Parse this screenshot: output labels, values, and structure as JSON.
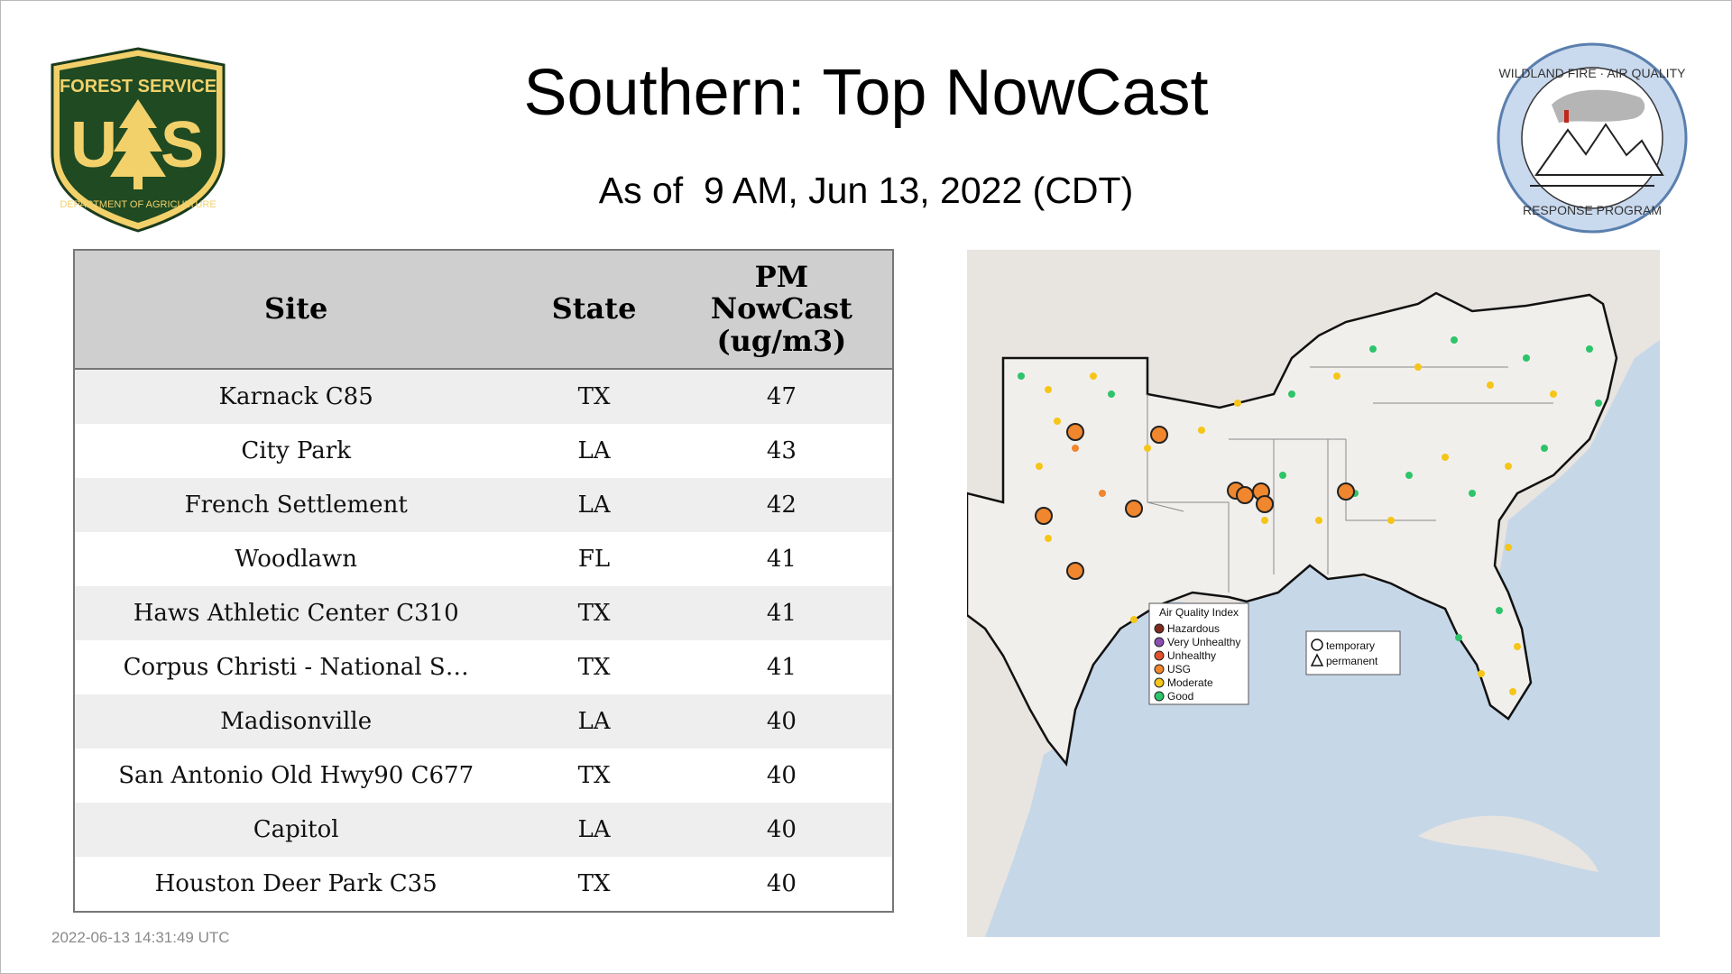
{
  "header": {
    "title": "Southern: Top NowCast",
    "subtitle": "As of  9 AM, Jun 13, 2022 (CDT)"
  },
  "logos": {
    "left": {
      "icon": "usda-forest-service-shield",
      "text_top": "FOREST SERVICE",
      "text_center": "U S",
      "text_bottom": "DEPARTMENT OF AGRICULTURE"
    },
    "right": {
      "icon": "wildland-fire-air-quality-seal",
      "text_top": "WILDLAND FIRE · AIR QUALITY",
      "text_bottom": "RESPONSE PROGRAM"
    }
  },
  "table": {
    "headers": [
      "Site",
      "State",
      "PM NowCast (ug/m3)"
    ],
    "header_pm_lines": [
      "PM",
      "NowCast",
      "(ug/m3)"
    ],
    "rows": [
      {
        "site": "Karnack C85",
        "state": "TX",
        "value": "47"
      },
      {
        "site": "City Park",
        "state": "LA",
        "value": "43"
      },
      {
        "site": "French Settlement",
        "state": "LA",
        "value": "42"
      },
      {
        "site": "Woodlawn",
        "state": "FL",
        "value": "41"
      },
      {
        "site": "Haws Athletic Center C310",
        "state": "TX",
        "value": "41"
      },
      {
        "site": "Corpus Christi - National S…",
        "state": "TX",
        "value": "41"
      },
      {
        "site": "Madisonville",
        "state": "LA",
        "value": "40"
      },
      {
        "site": "San Antonio Old Hwy90 C677",
        "state": "TX",
        "value": "40"
      },
      {
        "site": "Capitol",
        "state": "LA",
        "value": "40"
      },
      {
        "site": "Houston Deer Park C35",
        "state": "TX",
        "value": "40"
      }
    ]
  },
  "map": {
    "legend": {
      "title": "Air Quality Index",
      "items": [
        {
          "label": "Hazardous",
          "color": "#7e2a1f"
        },
        {
          "label": "Very Unhealthy",
          "color": "#8a4fb0"
        },
        {
          "label": "Unhealthy",
          "color": "#e2502c"
        },
        {
          "label": "USG",
          "color": "#f0862d"
        },
        {
          "label": "Moderate",
          "color": "#f5c518"
        },
        {
          "label": "Good",
          "color": "#2ec46a"
        }
      ]
    },
    "shape_legend": {
      "items": [
        {
          "label": "temporary",
          "icon": "circle-icon"
        },
        {
          "label": "permanent",
          "icon": "triangle-icon"
        }
      ]
    },
    "colors": {
      "water": "#c6d7e8",
      "land": "#e8e4e0",
      "region_land": "#f1efec",
      "border": "#111111"
    }
  },
  "timestamp": "2022-06-13 14:31:49 UTC"
}
